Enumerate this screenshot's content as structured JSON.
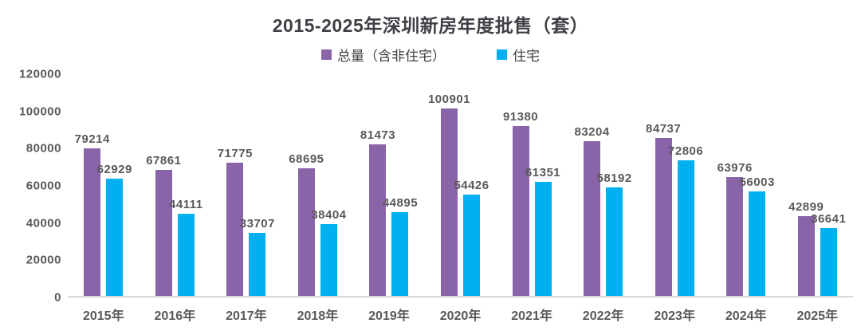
{
  "title": "2015-2025年深圳新房年度批售（套）",
  "chart_data": {
    "type": "bar",
    "title": "2015-2025年深圳新房年度批售（套）",
    "categories": [
      "2015年",
      "2016年",
      "2017年",
      "2018年",
      "2019年",
      "2020年",
      "2021年",
      "2022年",
      "2023年",
      "2024年",
      "2025年"
    ],
    "series": [
      {
        "name": "总量（含非住宅）",
        "color": "#8964A8",
        "values": [
          79214,
          67861,
          71775,
          68695,
          81473,
          100901,
          91380,
          83204,
          84737,
          63976,
          42899
        ]
      },
      {
        "name": "住宅",
        "color": "#00B0F0",
        "values": [
          62929,
          44111,
          33707,
          38404,
          44895,
          54426,
          61351,
          58192,
          72806,
          56003,
          36641
        ]
      }
    ],
    "xlabel": "",
    "ylabel": "",
    "ylim": [
      0,
      120000
    ],
    "ytick_step": 20000,
    "grid": false,
    "legend_position": "top",
    "data_labels": true
  },
  "colors": {
    "background": "#ffffff",
    "title_text": "#3f3f46",
    "axis_label_text": "#595959",
    "data_label_text": "#595959",
    "axis_line": "#d9d9d9",
    "series_total": "#8964A8",
    "series_residential": "#00B0F0"
  }
}
